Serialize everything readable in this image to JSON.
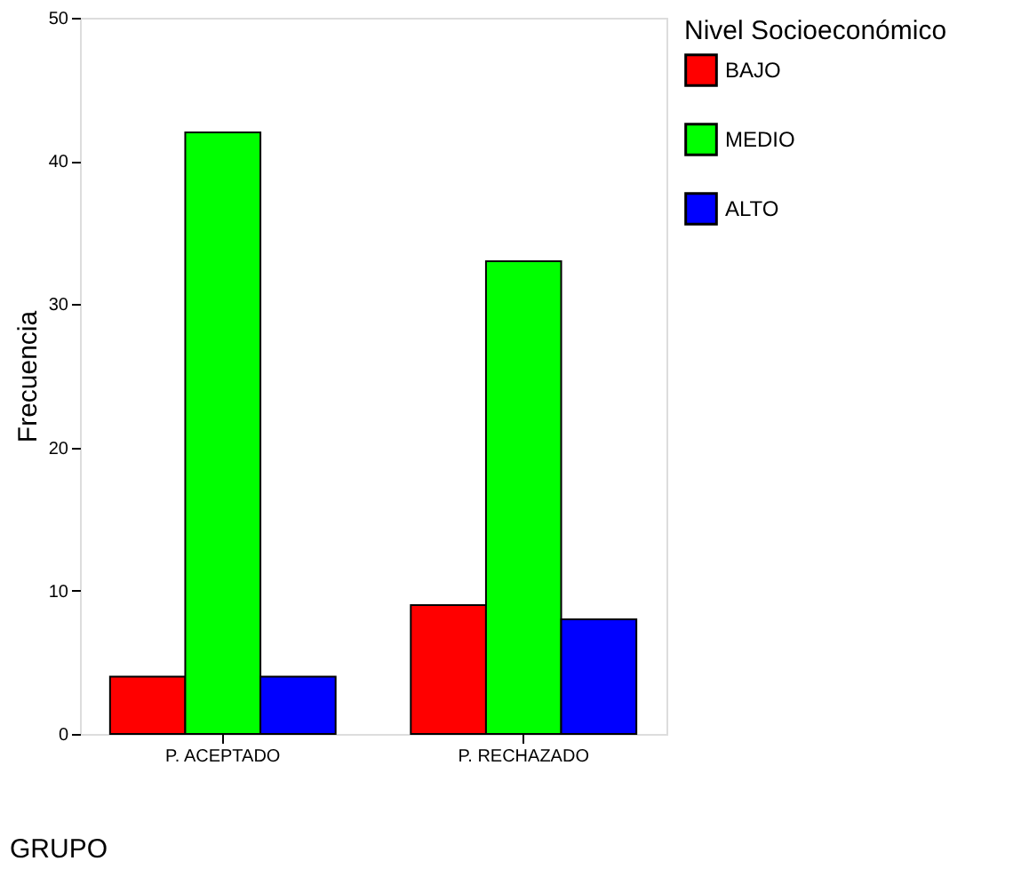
{
  "chart_data": {
    "type": "bar",
    "xlabel": "GRUPO",
    "ylabel": "Frecuencia",
    "legend_title": "Nivel Socioeconómico",
    "categories": [
      "P. ACEPTADO",
      "P. RECHAZADO"
    ],
    "series": [
      {
        "name": "BAJO",
        "color": "#ff0000",
        "values": [
          4,
          9
        ]
      },
      {
        "name": "MEDIO",
        "color": "#00ff00",
        "values": [
          42,
          33
        ]
      },
      {
        "name": "ALTO",
        "color": "#0000ff",
        "values": [
          4,
          8
        ]
      }
    ],
    "ylim": [
      0,
      50
    ],
    "yticks": [
      0,
      10,
      20,
      30,
      40,
      50
    ],
    "grid": false,
    "legend": "right"
  }
}
